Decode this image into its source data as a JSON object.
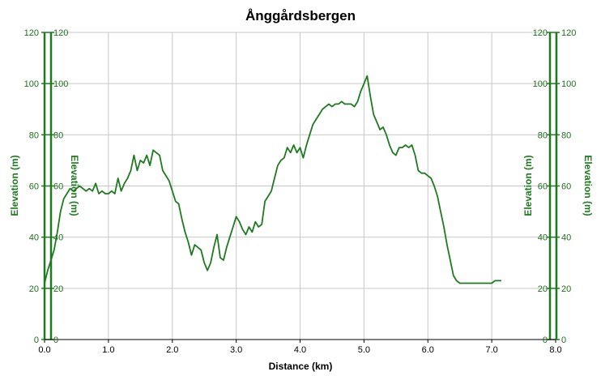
{
  "chart_data": {
    "type": "line",
    "title": "Ånggårdsbergen",
    "xlabel": "Distance (km)",
    "ylabel_left_outer": "Elevation (m)",
    "ylabel_left_inner": "Elevation (m)",
    "ylabel_right_inner": "Elevation (m)",
    "ylabel_right_outer": "Elevation (m)",
    "xlim": [
      0,
      8
    ],
    "ylim": [
      0,
      120
    ],
    "x_ticks": [
      "0.0",
      "1.0",
      "2.0",
      "3.0",
      "4.0",
      "5.0",
      "6.0",
      "7.0",
      "8.0"
    ],
    "y_ticks": [
      "0",
      "20",
      "40",
      "60",
      "80",
      "100",
      "120"
    ],
    "grid": true,
    "line_color": "#1e7a1e",
    "axis_color": "#1e7a1e",
    "series": [
      {
        "x": [
          0.0,
          0.05,
          0.1,
          0.15,
          0.2,
          0.25,
          0.3,
          0.35,
          0.4,
          0.45,
          0.5,
          0.55,
          0.6,
          0.65,
          0.7,
          0.75,
          0.8,
          0.85,
          0.9,
          0.95,
          1.0,
          1.05,
          1.1,
          1.15,
          1.2,
          1.25,
          1.3,
          1.35,
          1.4,
          1.45,
          1.5,
          1.55,
          1.6,
          1.65,
          1.7,
          1.75,
          1.8,
          1.85,
          1.9,
          1.95,
          2.0,
          2.05,
          2.1,
          2.15,
          2.2,
          2.25,
          2.3,
          2.35,
          2.4,
          2.45,
          2.5,
          2.55,
          2.6,
          2.65,
          2.7,
          2.75,
          2.8,
          2.85,
          2.9,
          2.95,
          3.0,
          3.05,
          3.1,
          3.15,
          3.2,
          3.25,
          3.3,
          3.35,
          3.4,
          3.45,
          3.5,
          3.55,
          3.6,
          3.65,
          3.7,
          3.75,
          3.8,
          3.85,
          3.9,
          3.95,
          4.0,
          4.05,
          4.1,
          4.15,
          4.2,
          4.25,
          4.3,
          4.35,
          4.4,
          4.45,
          4.5,
          4.55,
          4.6,
          4.65,
          4.7,
          4.75,
          4.8,
          4.85,
          4.9,
          4.95,
          5.0,
          5.05,
          5.1,
          5.15,
          5.2,
          5.25,
          5.3,
          5.35,
          5.4,
          5.45,
          5.5,
          5.55,
          5.58,
          5.6,
          5.65,
          5.7,
          5.75,
          5.8,
          5.85,
          5.9,
          5.95,
          6.0,
          6.05,
          6.1,
          6.15,
          6.2,
          6.25,
          6.3,
          6.35,
          6.4,
          6.45,
          6.5,
          6.55,
          6.6,
          6.65,
          6.7,
          6.75,
          6.8,
          6.85,
          6.9,
          6.95,
          7.0,
          7.05,
          7.1,
          7.15
        ],
        "y": [
          22,
          27,
          31,
          35,
          42,
          50,
          55,
          57,
          59,
          58,
          59,
          60,
          59,
          58,
          59,
          58,
          61,
          57,
          58,
          57,
          57,
          58,
          57,
          63,
          58,
          61,
          63,
          66,
          72,
          66,
          70,
          69,
          72,
          68,
          74,
          73,
          72,
          66,
          64,
          62,
          58,
          54,
          53,
          47,
          42,
          38,
          33,
          37,
          36,
          35,
          30,
          27,
          30,
          36,
          41,
          32,
          31,
          36,
          40,
          44,
          48,
          46,
          43,
          41,
          44,
          42,
          46,
          44,
          45,
          54,
          56,
          58,
          63,
          68,
          70,
          71,
          75,
          73,
          76,
          73,
          75,
          71,
          76,
          80,
          84,
          86,
          88,
          90,
          91,
          92,
          91,
          92,
          92,
          93,
          92,
          92,
          92,
          91,
          93,
          97,
          100,
          103,
          95,
          88,
          85,
          82,
          83,
          80,
          76,
          73,
          72,
          75,
          75,
          75,
          76,
          75,
          76,
          72,
          66,
          65,
          65,
          64,
          63,
          60,
          56,
          50,
          44,
          37,
          31,
          25,
          23,
          22,
          22,
          22,
          22,
          22,
          22,
          22,
          22,
          22,
          22,
          22,
          23,
          23,
          23
        ]
      }
    ]
  }
}
